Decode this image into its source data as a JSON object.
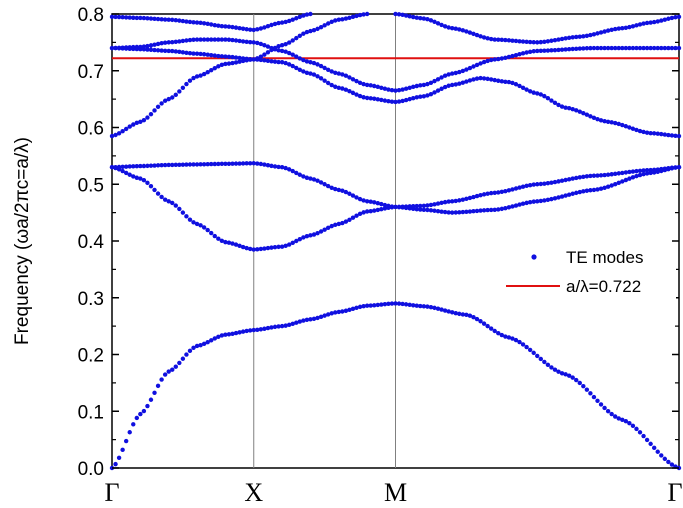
{
  "chart_data": {
    "type": "scatter",
    "ylabel": "Frequency (ωa/2πc=a/λ)",
    "xlabel": "",
    "ylim": [
      0.0,
      0.8
    ],
    "yticks": [
      "0.0",
      "0.1",
      "0.2",
      "0.3",
      "0.4",
      "0.5",
      "0.6",
      "0.7",
      "0.8"
    ],
    "xticks": [
      "Γ",
      "X",
      "M",
      "Γ"
    ],
    "grid": false,
    "legend_position": "right-middle",
    "colors": {
      "points": "#1010e0",
      "line": "#e01010",
      "vlines": "#808080"
    },
    "series": [
      {
        "name": "TE modes",
        "kind": "scatter",
        "bands": [
          [
            [
              0.0,
              0.0
            ],
            [
              0.1,
              0.095
            ],
            [
              0.2,
              0.17
            ],
            [
              0.3,
              0.215
            ],
            [
              0.4,
              0.235
            ],
            [
              0.5,
              0.243
            ],
            [
              0.6,
              0.25
            ],
            [
              0.7,
              0.262
            ],
            [
              0.8,
              0.275
            ],
            [
              0.9,
              0.286
            ],
            [
              1.0,
              0.29
            ],
            [
              1.1,
              0.285
            ],
            [
              1.25,
              0.27
            ],
            [
              1.4,
              0.23
            ],
            [
              1.6,
              0.165
            ],
            [
              1.8,
              0.085
            ],
            [
              2.0,
              0.0
            ]
          ],
          [
            [
              0.0,
              0.53
            ],
            [
              0.1,
              0.51
            ],
            [
              0.2,
              0.47
            ],
            [
              0.3,
              0.43
            ],
            [
              0.4,
              0.398
            ],
            [
              0.5,
              0.385
            ],
            [
              0.6,
              0.39
            ],
            [
              0.7,
              0.41
            ],
            [
              0.8,
              0.43
            ],
            [
              0.9,
              0.452
            ],
            [
              1.0,
              0.46
            ],
            [
              1.1,
              0.455
            ],
            [
              1.2,
              0.45
            ],
            [
              1.35,
              0.455
            ],
            [
              1.5,
              0.47
            ],
            [
              1.7,
              0.49
            ],
            [
              1.9,
              0.52
            ],
            [
              2.0,
              0.53
            ]
          ],
          [
            [
              0.0,
              0.53
            ],
            [
              0.1,
              0.532
            ],
            [
              0.2,
              0.534
            ],
            [
              0.3,
              0.535
            ],
            [
              0.4,
              0.536
            ],
            [
              0.5,
              0.537
            ],
            [
              0.6,
              0.53
            ],
            [
              0.7,
              0.51
            ],
            [
              0.8,
              0.49
            ],
            [
              0.9,
              0.47
            ],
            [
              1.0,
              0.46
            ],
            [
              1.1,
              0.462
            ],
            [
              1.2,
              0.47
            ],
            [
              1.35,
              0.485
            ],
            [
              1.5,
              0.5
            ],
            [
              1.7,
              0.515
            ],
            [
              1.9,
              0.525
            ],
            [
              2.0,
              0.53
            ]
          ],
          [
            [
              0.0,
              0.585
            ],
            [
              0.1,
              0.61
            ],
            [
              0.2,
              0.65
            ],
            [
              0.3,
              0.69
            ],
            [
              0.4,
              0.712
            ],
            [
              0.5,
              0.72
            ],
            [
              0.6,
              0.715
            ],
            [
              0.7,
              0.695
            ],
            [
              0.8,
              0.67
            ],
            [
              0.9,
              0.652
            ],
            [
              1.0,
              0.645
            ],
            [
              1.1,
              0.655
            ],
            [
              1.2,
              0.675
            ],
            [
              1.3,
              0.687
            ],
            [
              1.4,
              0.68
            ],
            [
              1.5,
              0.66
            ],
            [
              1.6,
              0.635
            ],
            [
              1.75,
              0.61
            ],
            [
              1.9,
              0.59
            ],
            [
              2.0,
              0.585
            ]
          ],
          [
            [
              0.0,
              0.74
            ],
            [
              0.1,
              0.742
            ],
            [
              0.2,
              0.75
            ],
            [
              0.3,
              0.755
            ],
            [
              0.4,
              0.755
            ],
            [
              0.5,
              0.75
            ],
            [
              0.6,
              0.735
            ],
            [
              0.7,
              0.715
            ],
            [
              0.8,
              0.695
            ],
            [
              0.9,
              0.675
            ],
            [
              1.0,
              0.665
            ],
            [
              1.1,
              0.675
            ],
            [
              1.2,
              0.695
            ],
            [
              1.35,
              0.72
            ],
            [
              1.5,
              0.735
            ],
            [
              1.7,
              0.74
            ],
            [
              2.0,
              0.74
            ]
          ],
          [
            [
              0.0,
              0.74
            ],
            [
              0.1,
              0.738
            ],
            [
              0.2,
              0.735
            ],
            [
              0.3,
              0.73
            ],
            [
              0.4,
              0.725
            ],
            [
              0.5,
              0.72
            ],
            [
              0.6,
              0.745
            ],
            [
              0.7,
              0.77
            ],
            [
              0.8,
              0.79
            ],
            [
              0.9,
              0.8
            ]
          ],
          [
            [
              0.0,
              0.795
            ],
            [
              0.1,
              0.793
            ],
            [
              0.2,
              0.79
            ],
            [
              0.3,
              0.785
            ],
            [
              0.4,
              0.778
            ],
            [
              0.5,
              0.772
            ],
            [
              0.6,
              0.785
            ],
            [
              0.7,
              0.8
            ]
          ],
          [
            [
              1.0,
              0.8
            ],
            [
              1.1,
              0.792
            ],
            [
              1.2,
              0.775
            ],
            [
              1.35,
              0.755
            ],
            [
              1.5,
              0.75
            ],
            [
              1.65,
              0.76
            ],
            [
              1.8,
              0.775
            ],
            [
              1.9,
              0.785
            ],
            [
              2.0,
              0.795
            ]
          ]
        ]
      },
      {
        "name": "a/λ=0.722",
        "kind": "hline",
        "y": 0.722
      }
    ],
    "legend": [
      "TE modes",
      "a/λ=0.722"
    ]
  }
}
